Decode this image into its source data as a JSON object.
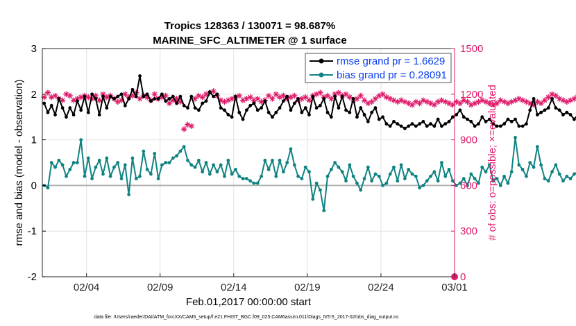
{
  "chart_data": {
    "type": "line",
    "title": "Tropics 128363 / 130071 = 98.687%",
    "subtitle": "MARINE_SFC_ALTIMETER @ 1 surface",
    "xlabel": "Feb.01,2017 00:00:00 start",
    "ylabel_left": "rmse and bias (model - observation)",
    "ylabel_right": "# of obs: o=possible; ×=evaluated",
    "footnote": "data file: /Users/raeder/DAI/ATM_forcXX/CAM6_setup/f.e21.FHIST_BGC.f09_025.CAM6assim.011/Diags_NTrS_2017-02/obs_diag_output.nc",
    "xlim": [
      0,
      28
    ],
    "ylim_left": [
      -2,
      3
    ],
    "ylim_right": [
      0,
      1500
    ],
    "x_ticks": [
      3,
      8,
      13,
      18,
      23,
      28
    ],
    "x_tick_labels": [
      "02/04",
      "02/09",
      "02/14",
      "02/19",
      "02/24",
      "03/01"
    ],
    "y_ticks_left": [
      -2,
      -1,
      0,
      1,
      2,
      3
    ],
    "y_ticks_right": [
      0,
      300,
      600,
      900,
      1200,
      1500
    ],
    "grid": true,
    "legend_position": "top-right",
    "colors": {
      "rmse": "#000000",
      "bias": "#0f8282",
      "obs": "#de1a6a",
      "left_axis": "#000000",
      "right_axis": "#de1a6a",
      "zero_line": "#b0b0b0",
      "grid": "#e2e2e2"
    },
    "series": [
      {
        "name": "rmse grand pr = 1.6629",
        "key": "rmse",
        "x_start": 0.125,
        "x_step": 0.25,
        "values": [
          1.8,
          1.6,
          1.75,
          1.55,
          1.9,
          1.7,
          1.5,
          1.7,
          1.55,
          1.85,
          1.65,
          1.95,
          1.6,
          2.0,
          1.9,
          1.55,
          1.95,
          1.7,
          1.95,
          1.9,
          1.95,
          2.0,
          1.75,
          1.9,
          2.1,
          1.95,
          2.4,
          1.95,
          2.0,
          1.85,
          1.9,
          1.9,
          2.0,
          1.85,
          1.9,
          1.95,
          1.8,
          1.95,
          1.75,
          1.7,
          1.95,
          1.7,
          1.65,
          1.8,
          1.85,
          2.05,
          1.95,
          2.0,
          1.7,
          1.65,
          1.55,
          1.5,
          1.95,
          1.6,
          1.45,
          1.65,
          1.75,
          1.8,
          1.65,
          1.7,
          1.85,
          1.6,
          1.5,
          1.6,
          1.7,
          1.85,
          1.95,
          1.65,
          1.8,
          1.9,
          1.6,
          1.7,
          1.55,
          1.95,
          1.7,
          1.75,
          1.9,
          1.6,
          1.5,
          1.95,
          1.7,
          1.95,
          1.65,
          1.6,
          1.9,
          1.5,
          1.7,
          1.55,
          1.4,
          1.6,
          1.7,
          1.45,
          1.5,
          1.35,
          1.3,
          1.4,
          1.35,
          1.3,
          1.25,
          1.3,
          1.35,
          1.3,
          1.35,
          1.4,
          1.3,
          1.35,
          1.3,
          1.45,
          1.3,
          1.35,
          1.4,
          1.5,
          1.55,
          1.65,
          1.5,
          1.45,
          1.4,
          1.3,
          1.35,
          1.5,
          1.4,
          1.45,
          1.35,
          1.3,
          1.3,
          1.35,
          1.45,
          1.4,
          1.45,
          1.3,
          1.3,
          1.35,
          1.65,
          1.9,
          1.55,
          1.6,
          1.65,
          1.7,
          1.9,
          1.7,
          1.65,
          1.55,
          1.6,
          1.55,
          1.45,
          1.55,
          1.4,
          1.5,
          1.3,
          1.55,
          1.6,
          1.5,
          1.65,
          1.55,
          1.5,
          1.5,
          1.55,
          1.6,
          1.55,
          1.6,
          1.65,
          1.7,
          1.75,
          1.7,
          1.8,
          1.95,
          1.75,
          1.9,
          2.2,
          1.7,
          1.8,
          1.6,
          1.85,
          1.9,
          1.6,
          1.8,
          1.65,
          1.7,
          1.9,
          1.7,
          1.85,
          1.75,
          1.8,
          1.8
        ]
      },
      {
        "name": "bias grand pr = 0.28091",
        "key": "bias",
        "x_start": 0.125,
        "x_step": 0.25,
        "values": [
          0.0,
          -0.05,
          0.5,
          0.4,
          0.55,
          0.45,
          0.2,
          0.35,
          0.5,
          0.5,
          1.0,
          0.2,
          0.6,
          0.15,
          0.4,
          0.55,
          0.25,
          0.6,
          0.2,
          0.4,
          0.5,
          0.15,
          0.45,
          -0.2,
          0.6,
          0.15,
          0.2,
          0.75,
          0.35,
          0.25,
          0.7,
          0.15,
          0.45,
          0.5,
          0.5,
          0.6,
          0.65,
          0.75,
          0.85,
          0.55,
          0.45,
          0.4,
          0.55,
          0.3,
          0.5,
          0.25,
          0.45,
          0.3,
          0.45,
          0.2,
          0.55,
          0.25,
          0.35,
          0.2,
          0.15,
          0.15,
          0.1,
          0.05,
          0.05,
          0.2,
          0.55,
          0.35,
          0.55,
          0.2,
          0.55,
          0.3,
          0.5,
          0.8,
          0.45,
          0.2,
          0.15,
          0.4,
          0.3,
          -0.3,
          0.05,
          -0.1,
          -0.55,
          0.2,
          0.35,
          0.5,
          0.4,
          0.3,
          0.1,
          0.45,
          0.2,
          0.05,
          -0.1,
          0.15,
          0.4,
          0.1,
          0.25,
          0.2,
          0.0,
          0.05,
          0.25,
          0.4,
          0.1,
          0.45,
          0.15,
          0.35,
          0.25,
          0.2,
          -0.05,
          0.0,
          0.1,
          0.2,
          0.3,
          0.1,
          0.5,
          0.2,
          0.35,
          0.1,
          0.0,
          0.05,
          0.15,
          0.0,
          0.25,
          0.15,
          0.05,
          0.4,
          0.3,
          0.45,
          0.1,
          0.15,
          0.0,
          0.2,
          0.05,
          0.3,
          1.05,
          0.45,
          0.35,
          0.2,
          0.5,
          0.4,
          0.85,
          0.45,
          0.15,
          0.1,
          0.3,
          0.45,
          0.25,
          0.1,
          0.2,
          0.15,
          0.25,
          0.3,
          0.15,
          0.3,
          0.25,
          0.2,
          0.35,
          0.2,
          0.25,
          0.2,
          0.05,
          0.3,
          0.2,
          0.45,
          0.35,
          0.1,
          0.25,
          -0.05,
          0.2,
          -0.2,
          0.0,
          0.35,
          0.3,
          0.15,
          -0.45,
          0.35,
          0.2,
          0.25,
          0.45,
          -0.25,
          0.1,
          0.0,
          0.05,
          -0.15,
          0.4,
          0.45,
          0.35,
          0.7,
          0.3,
          0.55,
          0.5
        ]
      },
      {
        "name": "observations evaluated",
        "key": "obs",
        "x_start": 0.125,
        "x_step": 0.25,
        "values": [
          1180,
          1210,
          1180,
          1190,
          1170,
          1160,
          1200,
          1190,
          1160,
          1170,
          1180,
          1190,
          1180,
          1170,
          1190,
          1160,
          1200,
          1180,
          1190,
          1170,
          1150,
          1160,
          1200,
          1180,
          1190,
          1210,
          1170,
          1190,
          1180,
          1160,
          1200,
          1170,
          1180,
          1190,
          1140,
          1160,
          1170,
          1150,
          970,
          1000,
          990,
          1170,
          1190,
          1180,
          1200,
          1210,
          1220,
          1190,
          1160,
          1150,
          1160,
          1170,
          1180,
          1190,
          1160,
          1170,
          1180,
          1160,
          1170,
          1150,
          1160,
          1190,
          1170,
          1200,
          1180,
          1190,
          1170,
          1180,
          1190,
          1160,
          1170,
          1180,
          1160,
          1190,
          1200,
          1210,
          1180,
          1190,
          1170,
          1200,
          1210,
          1190,
          1200,
          1180,
          1160,
          1170,
          1190,
          1160,
          1140,
          1150,
          1170,
          1190,
          1200,
          1180,
          1170,
          1160,
          1150,
          1160,
          1150,
          1140,
          1130,
          1150,
          1140,
          1160,
          1150,
          1140,
          1130,
          1150,
          1160,
          1150,
          1140,
          1130,
          1150,
          1140,
          1160,
          1150,
          1130,
          1140,
          1150,
          1160,
          1150,
          1140,
          1130,
          1140,
          1160,
          1150,
          1140,
          1150,
          1160,
          1170,
          1160,
          1150,
          1140,
          1130,
          1150,
          1140,
          1160,
          1180,
          1200,
          1190,
          1170,
          1160,
          1150,
          1160,
          1170,
          1190,
          1210,
          1240,
          1220,
          1200,
          1180,
          1160,
          1150,
          1130,
          1120,
          1110,
          1120,
          1130,
          1110,
          1100,
          1120,
          1130,
          1150,
          1140,
          1160,
          1170,
          1150,
          1160,
          1180,
          1190,
          1170,
          1160,
          1180,
          1150,
          1170,
          1160,
          1180,
          1200,
          1170,
          1150,
          1160,
          1150,
          1160,
          1170,
          1150,
          1160,
          1170,
          1150
        ]
      }
    ]
  }
}
